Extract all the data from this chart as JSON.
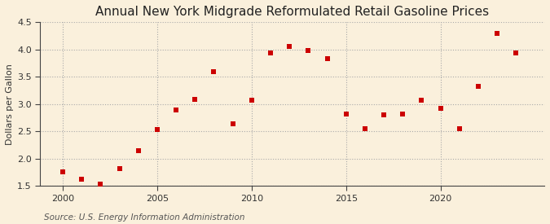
{
  "title": "Annual New York Midgrade Reformulated Retail Gasoline Prices",
  "ylabel": "Dollars per Gallon",
  "source": "Source: U.S. Energy Information Administration",
  "years": [
    2000,
    2001,
    2002,
    2003,
    2004,
    2005,
    2006,
    2007,
    2008,
    2009,
    2010,
    2011,
    2012,
    2013,
    2014,
    2015,
    2016,
    2017,
    2018,
    2019,
    2020,
    2021,
    2022,
    2023,
    2024
  ],
  "values": [
    1.76,
    1.63,
    1.54,
    1.82,
    2.14,
    2.54,
    2.89,
    3.09,
    3.6,
    2.64,
    3.07,
    3.94,
    4.05,
    3.98,
    3.83,
    2.82,
    2.55,
    2.81,
    2.82,
    3.07,
    2.93,
    2.55,
    3.32,
    4.29,
    3.94
  ],
  "ylim": [
    1.5,
    4.5
  ],
  "yticks": [
    1.5,
    2.0,
    2.5,
    3.0,
    3.5,
    4.0,
    4.5
  ],
  "xticks": [
    2000,
    2005,
    2010,
    2015,
    2020
  ],
  "xlim": [
    1998.8,
    2025.5
  ],
  "marker_color": "#cc0000",
  "marker": "s",
  "marker_size": 4,
  "bg_color": "#faf0dc",
  "plot_bg_color": "#faf0dc",
  "grid_color": "#aaaaaa",
  "spine_color": "#444444",
  "title_fontsize": 11,
  "label_fontsize": 8,
  "source_fontsize": 7.5,
  "tick_fontsize": 8
}
